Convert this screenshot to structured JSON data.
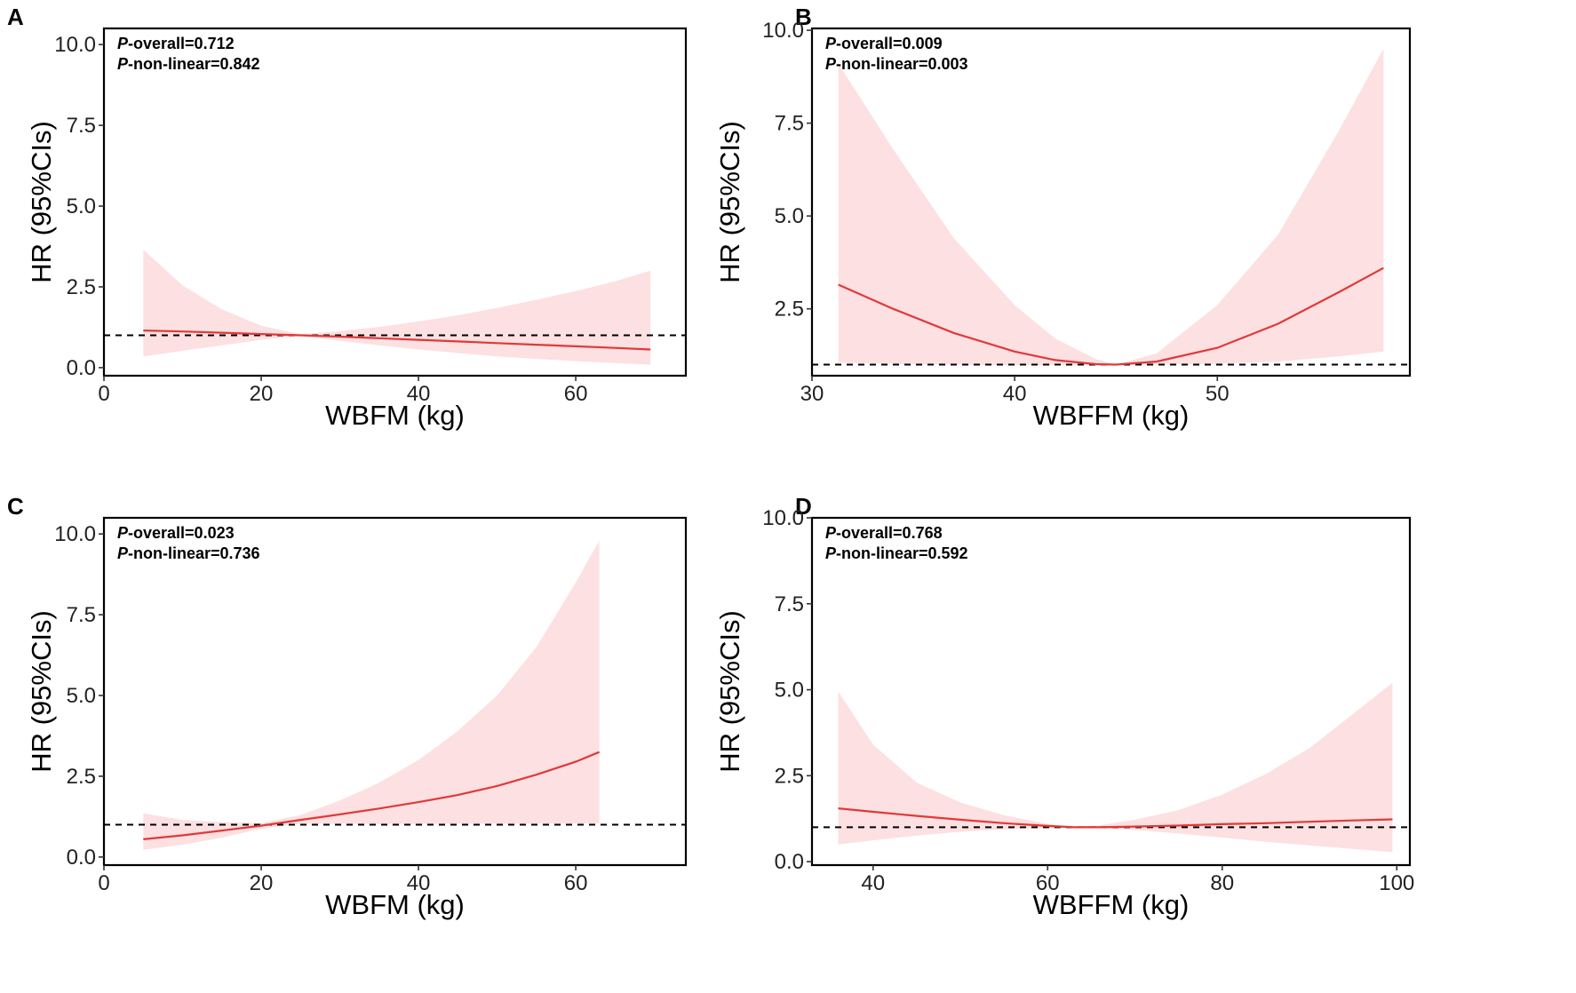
{
  "colors": {
    "band": "#fde0e1",
    "line": "#e0393a",
    "ref": "#000000",
    "frame": "#000000"
  },
  "chart_data": [
    {
      "panel": "A",
      "type": "line",
      "title": "",
      "xlabel": "WBFM (kg)",
      "ylabel": "HR (95%CIs)",
      "xlim": [
        0,
        74
      ],
      "ylim": [
        -0.25,
        10.5
      ],
      "xticks": [
        0,
        20,
        40,
        60
      ],
      "yticks": [
        0.0,
        2.5,
        5.0,
        7.5,
        10.0
      ],
      "ytick_labels": [
        "0.0",
        "2.5",
        "5.0",
        "7.5",
        "10.0"
      ],
      "annotations": [
        {
          "p": "P",
          "label": "-overall=0.712"
        },
        {
          "p": "P",
          "label": "-non-linear=0.842"
        }
      ],
      "reference_line": 1.0,
      "x": [
        5,
        10,
        15,
        20,
        25,
        30,
        35,
        40,
        45,
        50,
        55,
        60,
        65,
        69.5
      ],
      "hr": [
        1.15,
        1.12,
        1.08,
        1.04,
        1.0,
        0.96,
        0.91,
        0.86,
        0.81,
        0.76,
        0.71,
        0.66,
        0.61,
        0.56
      ],
      "lower": [
        0.35,
        0.52,
        0.69,
        0.86,
        0.98,
        0.83,
        0.69,
        0.56,
        0.45,
        0.35,
        0.27,
        0.2,
        0.14,
        0.09
      ],
      "upper": [
        3.65,
        2.55,
        1.8,
        1.3,
        1.03,
        1.13,
        1.26,
        1.43,
        1.62,
        1.85,
        2.1,
        2.37,
        2.67,
        3.0
      ]
    },
    {
      "panel": "B",
      "type": "line",
      "title": "",
      "xlabel": "WBFFM (kg)",
      "ylabel": "HR (95%CIs)",
      "xlim": [
        30,
        59.5
      ],
      "ylim": [
        0.7,
        10.05
      ],
      "xticks": [
        30,
        40,
        50
      ],
      "yticks": [
        2.5,
        5.0,
        7.5,
        10.0
      ],
      "ytick_labels": [
        "2.5",
        "5.0",
        "7.5",
        "10.0"
      ],
      "annotations": [
        {
          "p": "P",
          "label": "-overall=0.009"
        },
        {
          "p": "P",
          "label": "-non-linear=0.003"
        }
      ],
      "reference_line": 1.0,
      "x": [
        31.3,
        34,
        37,
        40,
        42,
        44,
        45,
        47,
        50,
        53,
        56,
        58.2
      ],
      "hr": [
        3.15,
        2.5,
        1.85,
        1.35,
        1.12,
        1.01,
        1.0,
        1.08,
        1.45,
        2.1,
        2.95,
        3.6
      ],
      "lower": [
        1.05,
        1.02,
        1.0,
        0.98,
        0.98,
        0.99,
        1.0,
        1.0,
        1.02,
        1.08,
        1.22,
        1.35
      ],
      "upper": [
        9.1,
        6.8,
        4.4,
        2.6,
        1.7,
        1.15,
        1.0,
        1.3,
        2.6,
        4.5,
        7.3,
        9.5
      ]
    },
    {
      "panel": "C",
      "type": "line",
      "title": "",
      "xlabel": "WBFM (kg)",
      "ylabel": "HR (95%CIs)",
      "xlim": [
        0,
        74
      ],
      "ylim": [
        -0.25,
        10.5
      ],
      "xticks": [
        0,
        20,
        40,
        60
      ],
      "yticks": [
        0.0,
        2.5,
        5.0,
        7.5,
        10.0
      ],
      "ytick_labels": [
        "0.0",
        "2.5",
        "5.0",
        "7.5",
        "10.0"
      ],
      "annotations": [
        {
          "p": "P",
          "label": "-overall=0.023"
        },
        {
          "p": "P",
          "label": "-non-linear=0.736"
        }
      ],
      "reference_line": 1.0,
      "x": [
        5,
        10,
        15,
        20,
        25,
        30,
        35,
        40,
        45,
        50,
        55,
        60,
        63
      ],
      "hr": [
        0.55,
        0.67,
        0.82,
        0.97,
        1.15,
        1.32,
        1.5,
        1.7,
        1.92,
        2.2,
        2.55,
        2.95,
        3.25
      ],
      "lower": [
        0.22,
        0.38,
        0.6,
        0.88,
        1.03,
        1.03,
        1.02,
        1.02,
        1.03,
        1.03,
        1.03,
        1.04,
        1.04
      ],
      "upper": [
        1.35,
        1.15,
        1.08,
        1.05,
        1.3,
        1.75,
        2.3,
        3.0,
        3.9,
        5.0,
        6.5,
        8.5,
        9.8
      ]
    },
    {
      "panel": "D",
      "type": "line",
      "title": "",
      "xlabel": "WBFFM (kg)",
      "ylabel": "HR (95%CIs)",
      "xlim": [
        33,
        101.5
      ],
      "ylim": [
        -0.1,
        10.0
      ],
      "xticks": [
        40,
        60,
        80,
        100
      ],
      "yticks": [
        0.0,
        2.5,
        5.0,
        7.5,
        10.0
      ],
      "ytick_labels": [
        "0.0",
        "2.5",
        "5.0",
        "7.5",
        "10.0"
      ],
      "annotations": [
        {
          "p": "P",
          "label": "-overall=0.768"
        },
        {
          "p": "P",
          "label": "-non-linear=0.592"
        }
      ],
      "reference_line": 1.0,
      "x": [
        36,
        40,
        45,
        50,
        55,
        60,
        63,
        66,
        70,
        75,
        80,
        85,
        90,
        95,
        99.5
      ],
      "hr": [
        1.55,
        1.45,
        1.33,
        1.22,
        1.12,
        1.04,
        1.0,
        1.0,
        1.02,
        1.05,
        1.09,
        1.12,
        1.16,
        1.2,
        1.23
      ],
      "lower": [
        0.5,
        0.62,
        0.76,
        0.87,
        0.94,
        0.98,
        1.0,
        0.98,
        0.92,
        0.82,
        0.7,
        0.58,
        0.47,
        0.37,
        0.28
      ],
      "upper": [
        4.95,
        3.4,
        2.3,
        1.72,
        1.35,
        1.1,
        1.01,
        1.06,
        1.22,
        1.5,
        1.95,
        2.55,
        3.3,
        4.3,
        5.2
      ]
    }
  ]
}
